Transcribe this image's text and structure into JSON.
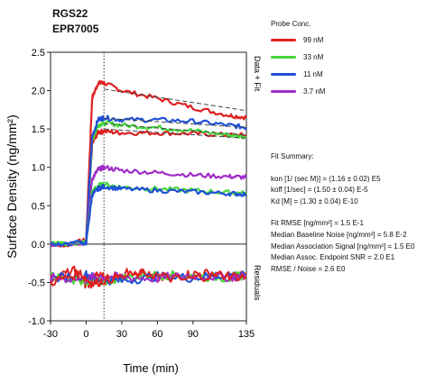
{
  "titles": {
    "line1": "RGS22",
    "line2": "EPR7005"
  },
  "legend": {
    "title": "Probe Conc.",
    "items": [
      {
        "label": "99 nM",
        "color": "#e02020"
      },
      {
        "label": "33 nM",
        "color": "#44d63a"
      },
      {
        "label": "11 nM",
        "color": "#1f4fd6"
      },
      {
        "label": "3.7 nM",
        "color": "#a02cc8"
      }
    ]
  },
  "fit_summary": {
    "title": "Fit Summary:",
    "kon": "kon  [1/ (sec M)]  =  (1.16 ± 0.02) E5",
    "koff": "koff  [1/sec]  =  (1.50 ± 0.04) E-5",
    "kd": "Kd  [M]  =  (1.30 ± 0.04) E-10",
    "rmse": "Fit RMSE  [ng/mm²]  =  1.5 E-1",
    "baseline_noise": "Median Baseline Noise  [ng/mm²]  =  5.8 E-2",
    "assoc_signal": "Median Association Signal  [ng/mm²]  =  1.5 E0",
    "endpoint_snr": "Median Assoc. Endpoint SNR  =  2.0 E1",
    "rmse_noise": "RMSE / Noise  =  2.6 E0"
  },
  "chart_data": {
    "type": "line",
    "xlabel": "Time (min)",
    "ylabel": "Surface Density (ng/mm²)",
    "right_labels": {
      "upper": "Data + Fit",
      "lower": "Residuals"
    },
    "xlim": [
      -30,
      135
    ],
    "ylim": [
      -1.0,
      2.5
    ],
    "x_ticks": [
      "-30",
      "0",
      "30",
      "60",
      "90",
      "135"
    ],
    "x_tick_values": [
      -30,
      0,
      30,
      60,
      90,
      135
    ],
    "y_ticks": [
      "-1.0",
      "-0.5",
      "0.0",
      "0.5",
      "1.0",
      "1.5",
      "2.0",
      "2.5"
    ],
    "y_tick_values": [
      -1.0,
      -0.5,
      0.0,
      0.5,
      1.0,
      1.5,
      2.0,
      2.5
    ],
    "zero_line_y": 0.0,
    "dissociation_start_x": 15,
    "series": [
      {
        "name": "99 nM",
        "color": "#e02020",
        "x": [
          -30,
          -15,
          0,
          5,
          10,
          15,
          30,
          60,
          90,
          120,
          135
        ],
        "y": [
          0.0,
          0.0,
          0.05,
          1.9,
          2.1,
          2.1,
          2.0,
          1.9,
          1.78,
          1.68,
          1.65
        ]
      },
      {
        "name": "99 nM",
        "color": "#e02020",
        "x": [
          -30,
          -15,
          0,
          5,
          10,
          15,
          30,
          60,
          90,
          120,
          135
        ],
        "y": [
          -0.02,
          0.0,
          0.02,
          1.3,
          1.46,
          1.47,
          1.45,
          1.45,
          1.44,
          1.42,
          1.42
        ]
      },
      {
        "name": "33 nM",
        "color": "#44d63a",
        "x": [
          -30,
          0,
          5,
          10,
          15,
          30,
          60,
          90,
          120,
          135
        ],
        "y": [
          0.0,
          0.02,
          1.35,
          1.55,
          1.58,
          1.55,
          1.52,
          1.48,
          1.42,
          1.4
        ]
      },
      {
        "name": "11 nM",
        "color": "#1f4fd6",
        "x": [
          -30,
          0,
          5,
          10,
          15,
          30,
          60,
          90,
          120,
          135
        ],
        "y": [
          0.0,
          0.02,
          1.4,
          1.62,
          1.65,
          1.62,
          1.62,
          1.6,
          1.55,
          1.52
        ]
      },
      {
        "name": "3.7 nM",
        "color": "#a02cc8",
        "x": [
          -30,
          0,
          5,
          10,
          15,
          30,
          60,
          90,
          120,
          135
        ],
        "y": [
          0.0,
          0.02,
          0.85,
          0.97,
          1.0,
          0.96,
          0.93,
          0.9,
          0.88,
          0.87
        ]
      },
      {
        "name": "33 nM",
        "color": "#44d63a",
        "x": [
          -30,
          0,
          5,
          10,
          15,
          30,
          60,
          90,
          120,
          135
        ],
        "y": [
          0.0,
          0.02,
          0.68,
          0.76,
          0.78,
          0.74,
          0.72,
          0.7,
          0.67,
          0.66
        ]
      },
      {
        "name": "11 nM",
        "color": "#1f4fd6",
        "x": [
          -30,
          0,
          5,
          10,
          15,
          30,
          60,
          90,
          120,
          135
        ],
        "y": [
          0.0,
          0.02,
          0.64,
          0.72,
          0.75,
          0.72,
          0.7,
          0.68,
          0.66,
          0.65
        ]
      }
    ],
    "fit_lines": [
      {
        "x": [
          15,
          135
        ],
        "y": [
          2.02,
          1.74
        ]
      },
      {
        "x": [
          15,
          135
        ],
        "y": [
          1.64,
          1.52
        ]
      },
      {
        "x": [
          15,
          135
        ],
        "y": [
          1.57,
          1.42
        ]
      },
      {
        "x": [
          15,
          135
        ],
        "y": [
          1.5,
          1.38
        ]
      }
    ],
    "residuals": [
      {
        "name": "99 nM",
        "color": "#e02020",
        "x": [
          -30,
          -10,
          0,
          10,
          20,
          40,
          60,
          80,
          100,
          120,
          135
        ],
        "y": [
          -0.45,
          -0.35,
          -0.55,
          -0.4,
          -0.45,
          -0.35,
          -0.45,
          -0.4,
          -0.38,
          -0.42,
          -0.4
        ]
      },
      {
        "name": "33 nM",
        "color": "#44d63a",
        "x": [
          -30,
          0,
          10,
          30,
          60,
          90,
          120,
          135
        ],
        "y": [
          -0.42,
          -0.48,
          -0.5,
          -0.44,
          -0.4,
          -0.42,
          -0.44,
          -0.4
        ]
      },
      {
        "name": "11 nM",
        "color": "#1f4fd6",
        "x": [
          -30,
          0,
          10,
          30,
          60,
          90,
          120,
          135
        ],
        "y": [
          -0.45,
          -0.4,
          -0.46,
          -0.48,
          -0.42,
          -0.44,
          -0.4,
          -0.42
        ]
      },
      {
        "name": "3.7 nM",
        "color": "#a02cc8",
        "x": [
          -30,
          0,
          10,
          30,
          60,
          90,
          120,
          135
        ],
        "y": [
          -0.44,
          -0.46,
          -0.42,
          -0.43,
          -0.45,
          -0.41,
          -0.43,
          -0.42
        ]
      },
      {
        "name": "99 nM",
        "color": "#e02020",
        "x": [
          -30,
          -5,
          5,
          20,
          50,
          80,
          110,
          135
        ],
        "y": [
          -0.5,
          -0.38,
          -0.52,
          -0.45,
          -0.38,
          -0.47,
          -0.4,
          -0.43
        ]
      }
    ]
  }
}
